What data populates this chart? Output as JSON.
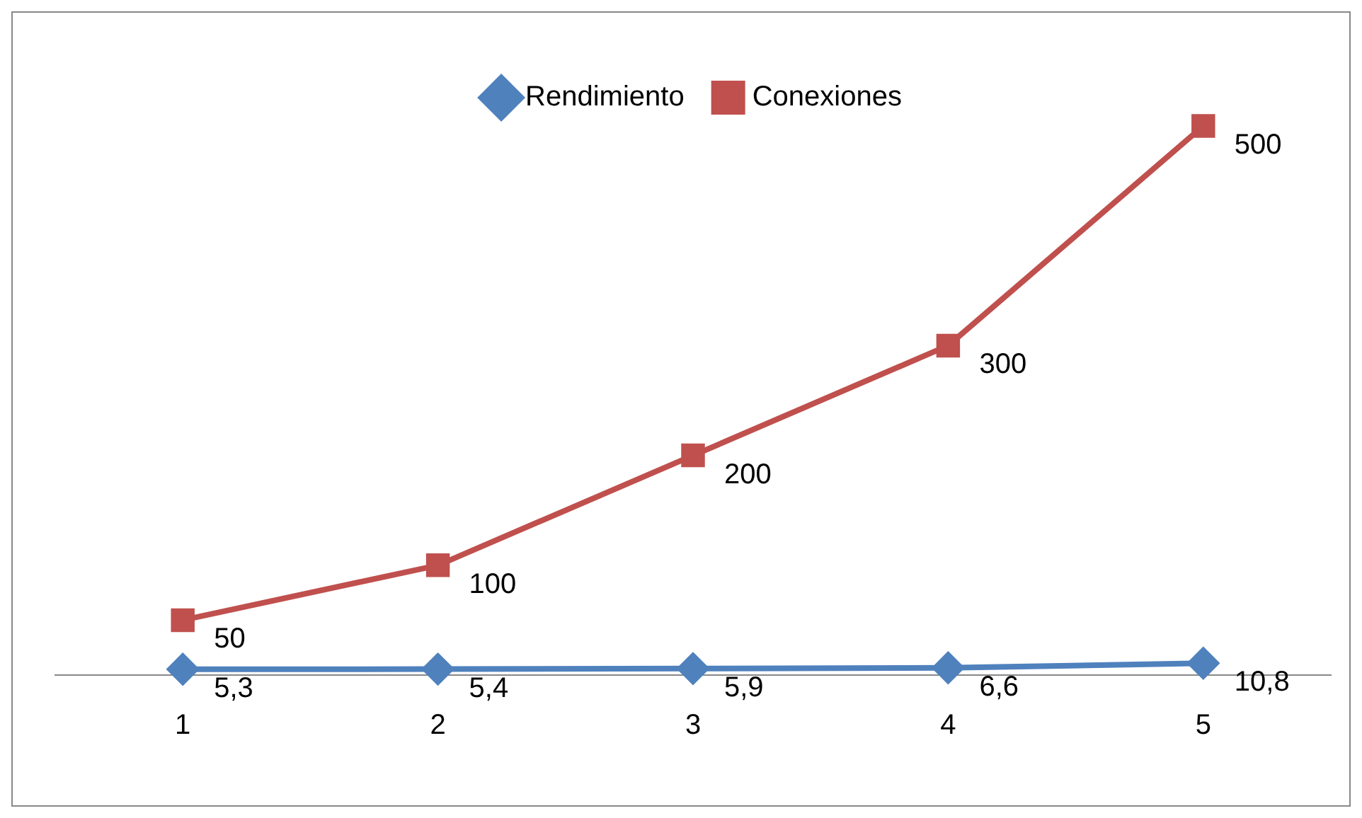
{
  "chart_data": {
    "type": "line",
    "categories": [
      "1",
      "2",
      "3",
      "4",
      "5"
    ],
    "series": [
      {
        "name": "Rendimiento",
        "color": "#4f81bd",
        "marker": "diamond",
        "values": [
          5.3,
          5.4,
          5.9,
          6.6,
          10.8
        ],
        "value_labels": [
          "5,3",
          "5,4",
          "5,9",
          "6,6",
          "10,8"
        ]
      },
      {
        "name": "Conexiones",
        "color": "#c0504d",
        "marker": "square",
        "values": [
          50,
          100,
          200,
          300,
          500
        ],
        "value_labels": [
          "50",
          "100",
          "200",
          "300",
          "500"
        ]
      }
    ],
    "legend": "top"
  }
}
